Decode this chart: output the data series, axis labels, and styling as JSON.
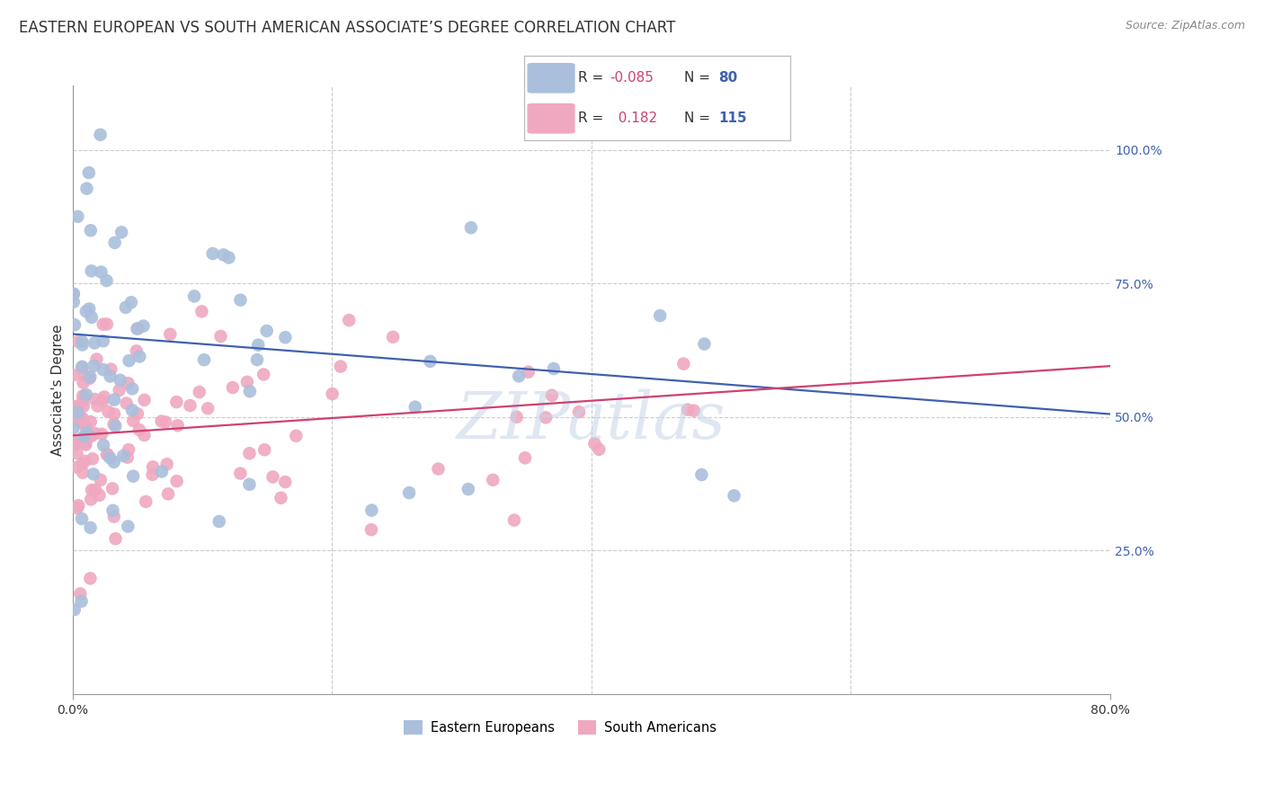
{
  "title": "EASTERN EUROPEAN VS SOUTH AMERICAN ASSOCIATE’S DEGREE CORRELATION CHART",
  "source": "Source: ZipAtlas.com",
  "ylabel": "Associate's Degree",
  "right_yticks": [
    "100.0%",
    "75.0%",
    "50.0%",
    "25.0%"
  ],
  "right_ytick_vals": [
    1.0,
    0.75,
    0.5,
    0.25
  ],
  "blue_label": "Eastern Europeans",
  "pink_label": "South Americans",
  "blue_R": -0.085,
  "blue_N": 80,
  "pink_R": 0.182,
  "pink_N": 115,
  "blue_color": "#AABFDC",
  "pink_color": "#EFA8C0",
  "blue_line_color": "#4060B0",
  "pink_line_color": "#D04070",
  "background_color": "#FFFFFF",
  "grid_color": "#CCCCCC",
  "title_fontsize": 12,
  "axis_label_fontsize": 11,
  "tick_fontsize": 10,
  "watermark": "ZIPatlas",
  "xlim": [
    0.0,
    0.8
  ],
  "ylim": [
    -0.02,
    1.12
  ],
  "blue_line_start": 0.655,
  "blue_line_end": 0.505,
  "pink_line_start": 0.465,
  "pink_line_end": 0.595,
  "blue_seed": 7,
  "pink_seed": 99
}
